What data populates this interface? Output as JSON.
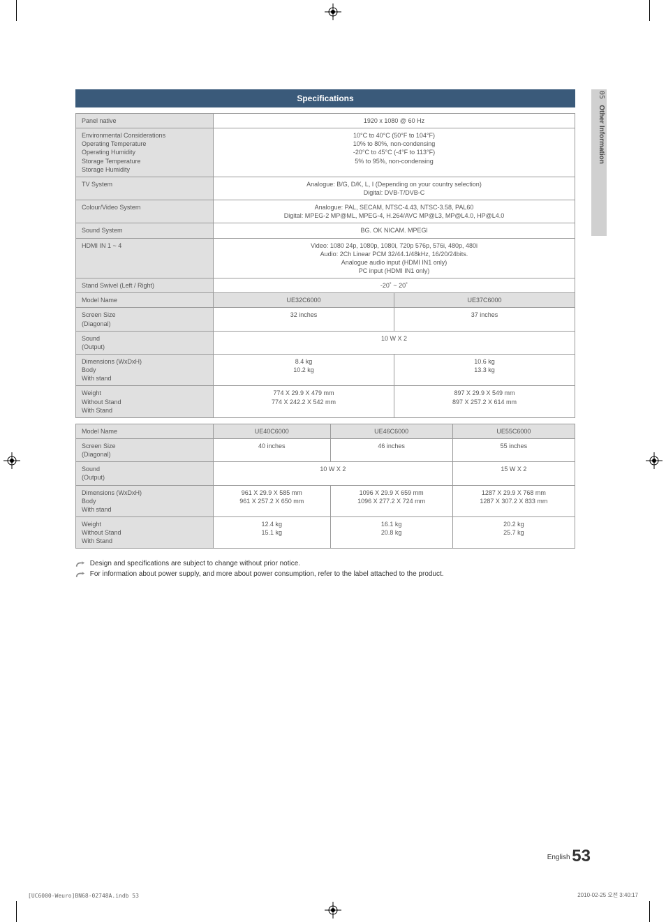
{
  "side": {
    "num": "05",
    "label": "Other Information"
  },
  "header": {
    "title": "Specifications"
  },
  "table1": {
    "rows": [
      {
        "label": "Panel native",
        "value": "1920 x 1080 @ 60 Hz"
      },
      {
        "label": "Environmental Considerations\nOperating Temperature\nOperating Humidity\nStorage Temperature\nStorage Humidity",
        "value": "10°C to 40°C (50°F to 104°F)\n10% to 80%, non-condensing\n-20°C to 45°C (-4°F to 113°F)\n5% to 95%, non-condensing"
      },
      {
        "label": "TV System",
        "value": "Analogue: B/G, D/K, L, I (Depending on your country selection)\nDigital: DVB-T/DVB-C"
      },
      {
        "label": "Colour/Video System",
        "value": "Analogue: PAL, SECAM, NTSC-4.43, NTSC-3.58, PAL60\nDigital: MPEG-2 MP@ML, MPEG-4, H.264/AVC MP@L3, MP@L4.0, HP@L4.0"
      },
      {
        "label": "Sound System",
        "value": "BG. OK NICAM. MPEGl"
      },
      {
        "label": "HDMI IN 1 ~ 4",
        "value": "Video: 1080 24p, 1080p, 1080i, 720p 576p, 576i, 480p, 480i\nAudio: 2Ch Linear PCM 32/44.1/48kHz, 16/20/24bits.\nAnalogue audio input (HDMI IN1 only)\nPC input (HDMI IN1 only)"
      },
      {
        "label": "Stand Swivel (Left / Right)",
        "value": "-20˚ ~ 20˚"
      }
    ],
    "model_row": {
      "label": "Model Name",
      "a": "UE32C6000",
      "b": "UE37C6000"
    },
    "pairs": [
      {
        "label": "Screen Size\n(Diagonal)",
        "a": "32 inches",
        "b": "37 inches"
      },
      {
        "label": "Sound\n(Output)",
        "span": "10 W X 2"
      },
      {
        "label": "Dimensions (WxDxH)\nBody\nWith stand",
        "a": "8.4 kg\n10.2 kg",
        "b": "10.6 kg\n13.3 kg"
      },
      {
        "label": "Weight\nWithout Stand\nWith Stand",
        "a": "774 X 29.9 X 479 mm\n774 X 242.2 X 542 mm",
        "b": "897 X 29.9 X 549 mm\n897 X 257.2 X 614 mm"
      }
    ]
  },
  "table2": {
    "model_row": {
      "label": "Model Name",
      "a": "UE40C6000",
      "b": "UE46C6000",
      "c": "UE55C6000"
    },
    "rows": [
      {
        "label": "Screen Size\n(Diagonal)",
        "a": "40 inches",
        "b": "46 inches",
        "c": "55 inches"
      },
      {
        "label": "Sound\n(Output)",
        "ab": "10 W X 2",
        "c": "15 W X 2"
      },
      {
        "label": "Dimensions (WxDxH)\nBody\nWith stand",
        "a": "961 X 29.9 X 585 mm\n961 X 257.2 X 650 mm",
        "b": "1096 X 29.9 X 659 mm\n1096 X 277.2 X 724 mm",
        "c": "1287 X 29.9 X 768 mm\n1287 X 307.2 X 833 mm"
      },
      {
        "label": "Weight\nWithout Stand\nWith Stand",
        "a": "12.4 kg\n15.1 kg",
        "b": "16.1 kg\n20.8 kg",
        "c": "20.2 kg\n25.7 kg"
      }
    ]
  },
  "notes": {
    "n1": "Design and specifications are subject to change without prior notice.",
    "n2": "For information about power supply, and more about power consumption, refer to the label attached to the product."
  },
  "page": {
    "lang": "English",
    "num": "53"
  },
  "footer": {
    "left": "[UC6000-Weuro]BN68-02748A.indb   53",
    "right": "2010-02-25   오전 3:40:17"
  }
}
